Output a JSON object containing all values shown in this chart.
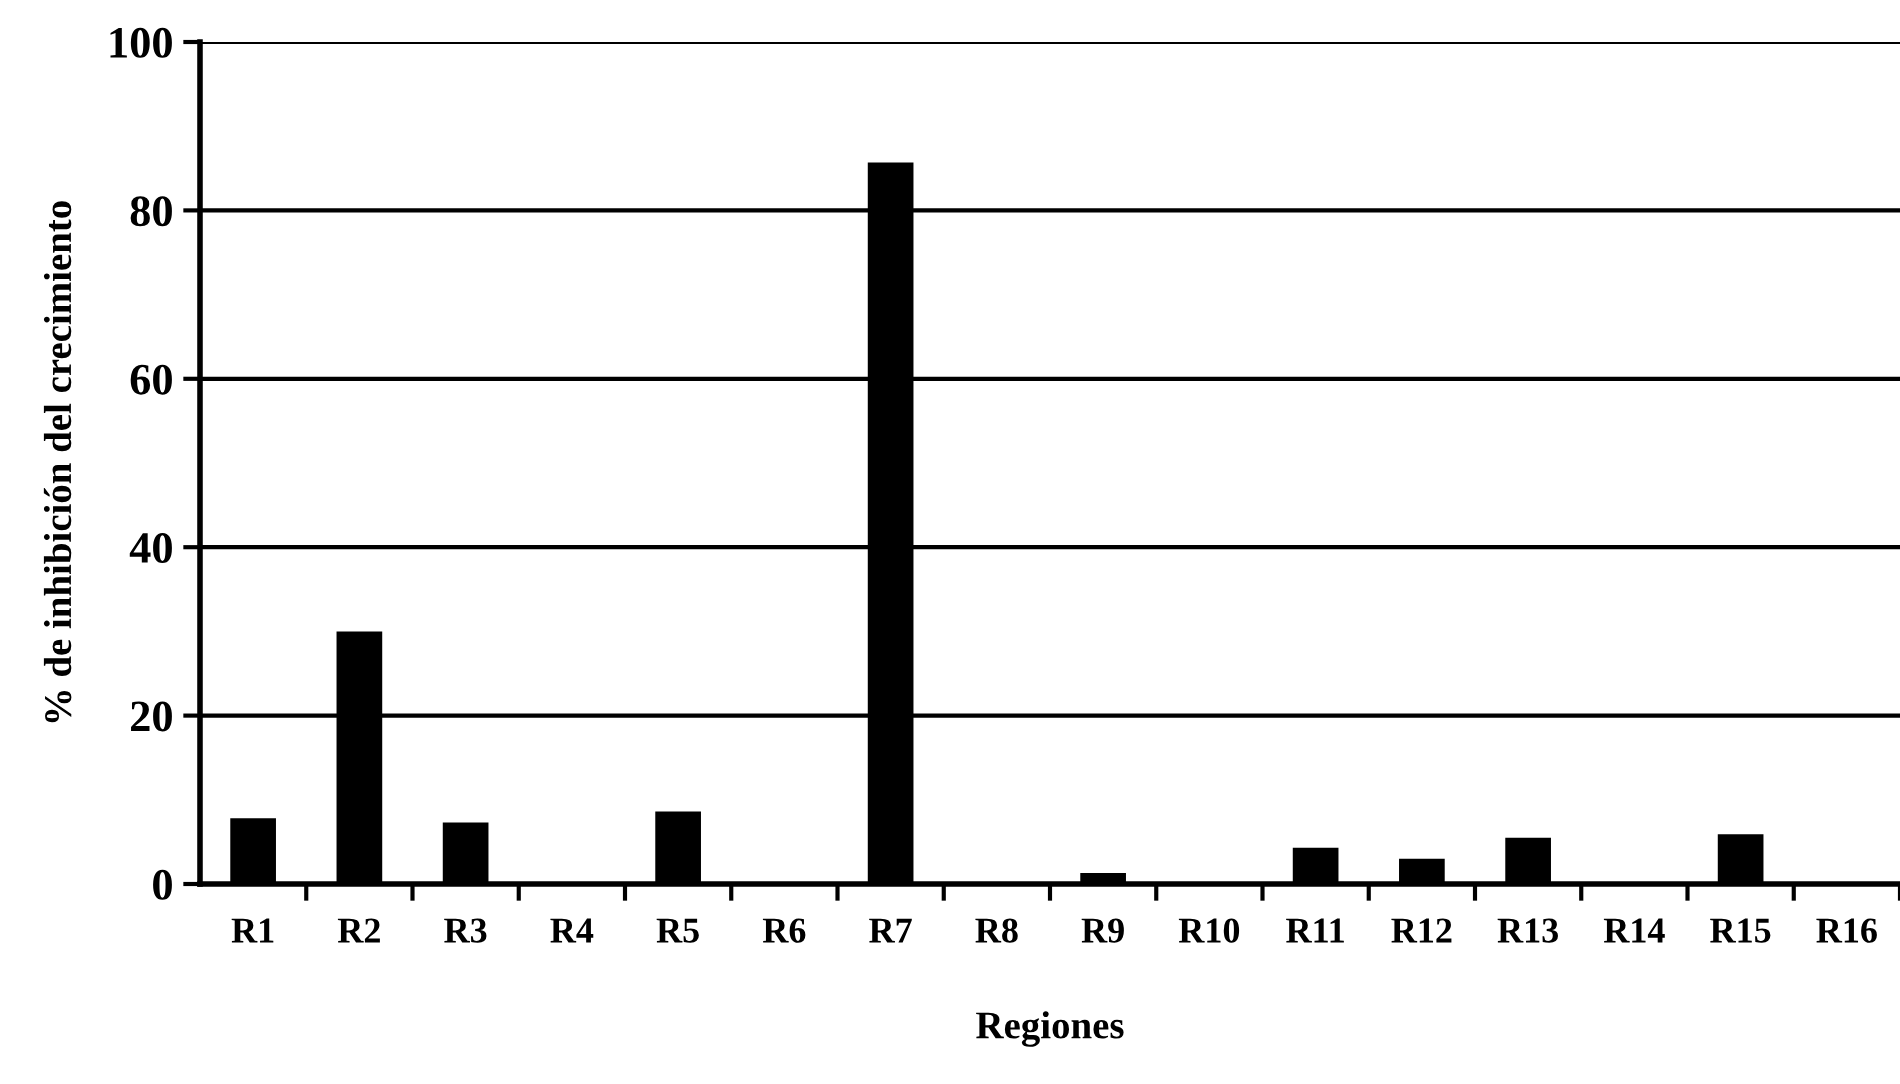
{
  "chart_data": {
    "type": "bar",
    "xlabel": "Regiones",
    "ylabel": "% de inhibición del crecimiento",
    "categories": [
      "R1",
      "R2",
      "R3",
      "R4",
      "R5",
      "R6",
      "R7",
      "R8",
      "R9",
      "R10",
      "R11",
      "R12",
      "R13",
      "R14",
      "R15",
      "R16"
    ],
    "values": [
      7.8,
      30,
      7.3,
      0,
      8.6,
      0,
      85.7,
      0,
      1.3,
      0,
      4.3,
      3,
      5.5,
      0,
      5.9,
      0
    ],
    "color": "#000000",
    "ylim": [
      0,
      100
    ],
    "yticks": [
      0,
      20,
      40,
      60,
      80,
      100
    ],
    "grid": "y",
    "legend": false
  }
}
